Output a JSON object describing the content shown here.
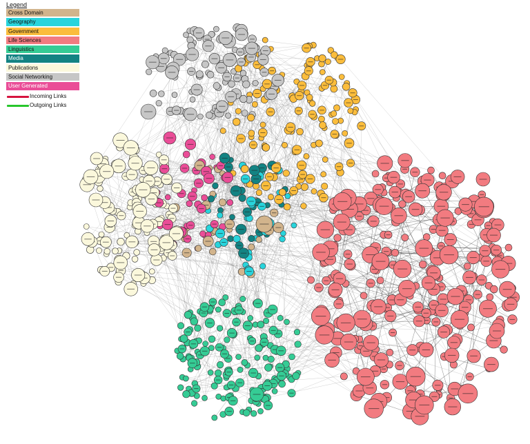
{
  "legend": {
    "title": "Legend",
    "categories": [
      {
        "label": "Cross Domain",
        "color": "#d2b48c",
        "text_color": "#111111"
      },
      {
        "label": "Geography",
        "color": "#28d4dc",
        "text_color": "#111111"
      },
      {
        "label": "Government",
        "color": "#fbbd3c",
        "text_color": "#111111"
      },
      {
        "label": "Life Sciences",
        "color": "#f27b80",
        "text_color": "#111111"
      },
      {
        "label": "Linguistics",
        "color": "#35cc95",
        "text_color": "#111111"
      },
      {
        "label": "Media",
        "color": "#138383",
        "text_color": "#ffffff"
      },
      {
        "label": "Publications",
        "color": "#fbf8dc",
        "text_color": "#111111"
      },
      {
        "label": "Social Networking",
        "color": "#c6c6c6",
        "text_color": "#111111"
      },
      {
        "label": "User Generated",
        "color": "#ea4d97",
        "text_color": "#ffffff"
      }
    ],
    "links": [
      {
        "label": "Incoming Links",
        "color": "#d6133e"
      },
      {
        "label": "Outgoing Links",
        "color": "#27c62b"
      }
    ]
  }
}
